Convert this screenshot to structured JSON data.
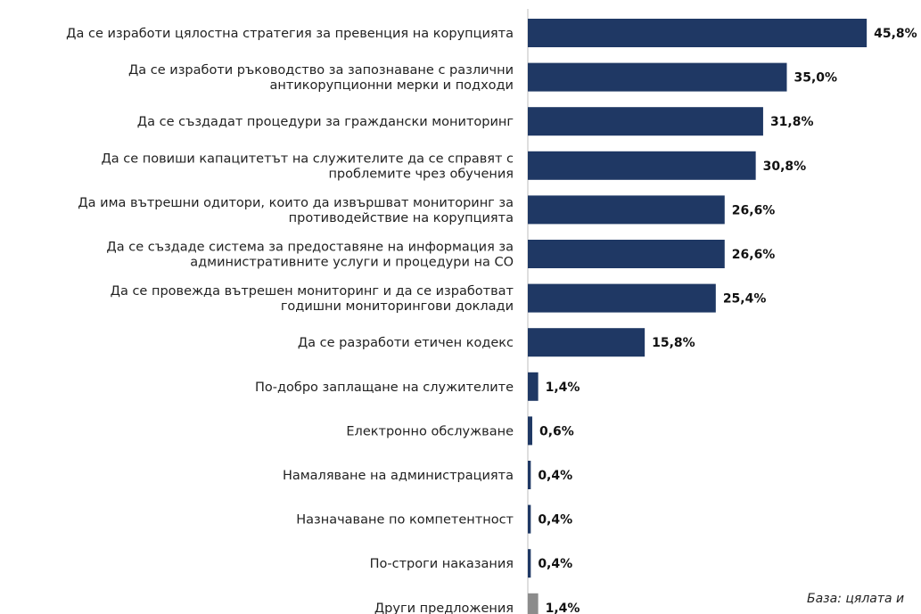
{
  "chart_data": {
    "type": "bar",
    "orientation": "horizontal",
    "categories": [
      [
        "Да се изработи цялостна стратегия за превенция на корупцията"
      ],
      [
        "Да се изработи ръководство за запознаване с различни",
        "антикорупционни мерки и подходи"
      ],
      [
        "Да се създадат процедури за граждански мониторинг"
      ],
      [
        "Да се повиши капацитетът на служителите да се справят с",
        "проблемите чрез обучения"
      ],
      [
        "Да има вътрешни одитори, които да извършват мониторинг за",
        "противодействие на корупцията"
      ],
      [
        "Да се създаде система за предоставяне на информация за",
        "административните услуги и процедури на СО"
      ],
      [
        "Да се провежда вътрешен мониторинг и да се изработват",
        "годишни мониторингови доклади"
      ],
      [
        "Да се разработи етичен кодекс"
      ],
      [
        "По-добро заплащане на служителите"
      ],
      [
        "Електронно обслужване"
      ],
      [
        "Намаляване на администрацията"
      ],
      [
        "Назначаване по компетентност"
      ],
      [
        "По-строги наказания"
      ],
      [
        "Други предложения"
      ]
    ],
    "values": [
      45.8,
      35.0,
      31.8,
      30.8,
      26.6,
      26.6,
      25.4,
      15.8,
      1.4,
      0.6,
      0.4,
      0.4,
      0.4,
      1.4
    ],
    "value_labels": [
      "45,8%",
      "35,0%",
      "31,8%",
      "30,8%",
      "26,6%",
      "26,6%",
      "25,4%",
      "15,8%",
      "1,4%",
      "0,6%",
      "0,4%",
      "0,4%",
      "0,4%",
      "1,4%"
    ],
    "colors": [
      "#1f3864",
      "#1f3864",
      "#1f3864",
      "#1f3864",
      "#1f3864",
      "#1f3864",
      "#1f3864",
      "#1f3864",
      "#1f3864",
      "#1f3864",
      "#1f3864",
      "#1f3864",
      "#1f3864",
      "#8c8c8c"
    ],
    "xlim": [
      0,
      50
    ],
    "grid": false,
    "legend": "none"
  },
  "footnote": "База: цялата и"
}
